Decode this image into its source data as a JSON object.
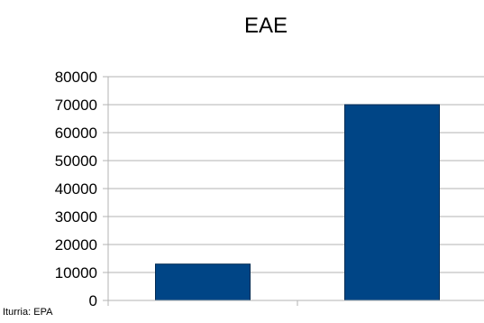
{
  "chart_data": {
    "type": "bar",
    "title": "EAE",
    "categories": [
      "",
      ""
    ],
    "values": [
      13000,
      70000
    ],
    "ylim": [
      0,
      80000
    ],
    "yticks": [
      0,
      10000,
      20000,
      30000,
      40000,
      50000,
      60000,
      70000,
      80000
    ],
    "grid": true,
    "xlabel": "",
    "ylabel": "",
    "bar_color": "#004586"
  },
  "source": "Iturria: EPA"
}
